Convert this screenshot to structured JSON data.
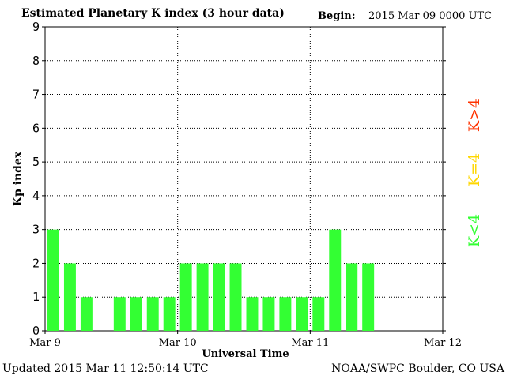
{
  "header": {
    "title": "Estimated Planetary K index (3 hour data)",
    "begin_label": "Begin:",
    "begin_value": "2015 Mar 09 0000 UTC"
  },
  "footer": {
    "updated": "Updated 2015 Mar 11 12:50:14 UTC",
    "source": "NOAA/SWPC Boulder, CO USA"
  },
  "legend": [
    {
      "label": "K>4",
      "color": "#ff3300"
    },
    {
      "label": "K=4",
      "color": "#ffd700"
    },
    {
      "label": "K<4",
      "color": "#33ff33"
    }
  ],
  "chart_data": {
    "type": "bar",
    "title": "Estimated Planetary K index (3 hour data)",
    "xlabel": "Universal Time",
    "ylabel": "Kp index",
    "ylim": [
      0,
      9
    ],
    "yticks": [
      0,
      1,
      2,
      3,
      4,
      5,
      6,
      7,
      8,
      9
    ],
    "x_ticks": [
      "Mar 9",
      "Mar 10",
      "Mar 11",
      "Mar 12"
    ],
    "bar_color": "#33ff33",
    "grid": true,
    "values": [
      3,
      2,
      1,
      null,
      1,
      1,
      1,
      1,
      2,
      2,
      2,
      2,
      1,
      1,
      1,
      1,
      1,
      3,
      2,
      2,
      null,
      null,
      null,
      null
    ]
  }
}
